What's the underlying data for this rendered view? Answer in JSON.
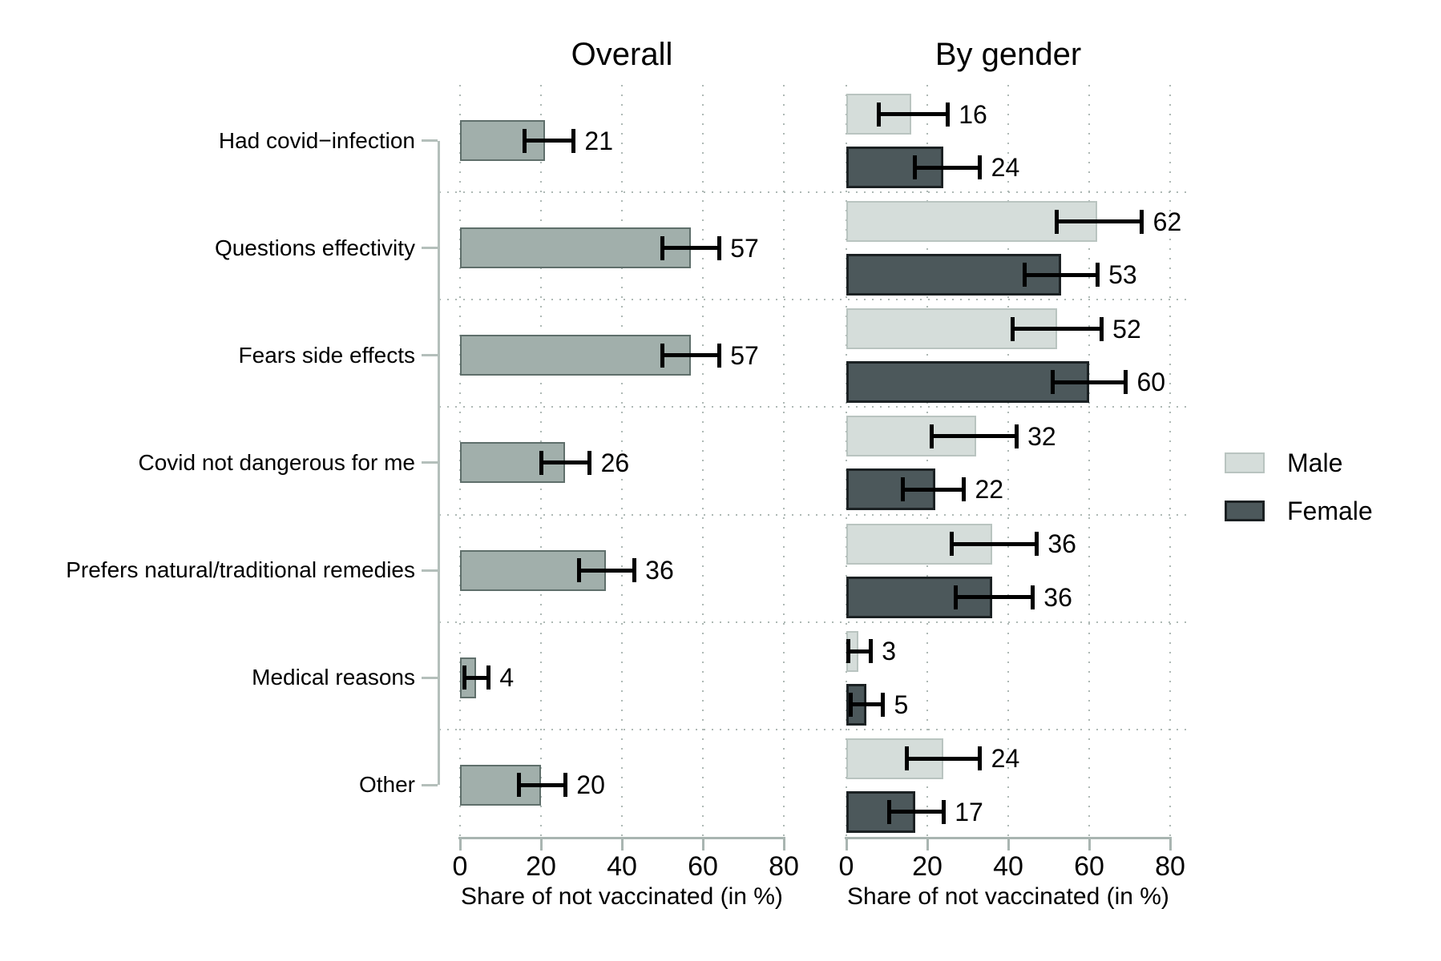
{
  "chart_data": {
    "type": "bar",
    "orientation": "horizontal",
    "xlabel": "Share of not vaccinated (in %)",
    "xlim": [
      0,
      80
    ],
    "x_ticks": [
      0,
      20,
      40,
      60,
      80
    ],
    "grid": true,
    "error_bars": true,
    "categories": [
      "Had covid−infection",
      "Questions effectivity",
      "Fears side effects",
      "Covid not dangerous for me",
      "Prefers natural/traditional remedies",
      "Medical reasons",
      "Other"
    ],
    "panels": [
      {
        "title": "Overall",
        "series": [
          {
            "name": "Overall",
            "values": [
              21,
              57,
              57,
              26,
              36,
              4,
              20
            ],
            "ci_low": [
              16,
              50,
              50,
              20,
              29.5,
              1,
              14.5
            ],
            "ci_high": [
              28,
              64,
              64,
              32,
              43,
              7,
              26
            ]
          }
        ]
      },
      {
        "title": "By gender",
        "series": [
          {
            "name": "Male",
            "values": [
              16,
              62,
              52,
              32,
              36,
              3,
              24
            ],
            "ci_low": [
              8,
              52,
              41,
              21,
              26,
              0.5,
              15
            ],
            "ci_high": [
              25,
              73,
              63,
              42,
              47,
              6,
              33
            ]
          },
          {
            "name": "Female",
            "values": [
              24,
              53,
              60,
              22,
              36,
              5,
              17
            ],
            "ci_low": [
              17,
              44,
              51,
              14,
              27,
              1,
              10.5
            ],
            "ci_high": [
              33,
              62,
              69,
              29,
              46,
              9,
              24
            ]
          }
        ]
      }
    ],
    "legend": [
      "Male",
      "Female"
    ],
    "legend_position": "right-middle"
  },
  "colors": {
    "overall_fill": "#a1afab",
    "overall_border": "#5f6f6b",
    "male_fill": "#d5ddda",
    "male_border": "#b9c4c0",
    "female_fill": "#4c585b",
    "female_border": "#1b2123",
    "axis": "#a9b5b1",
    "category_axis": "#b4bfbb",
    "grid": "#aeb9b5",
    "error_bar": "#000000",
    "text": "#000000"
  }
}
